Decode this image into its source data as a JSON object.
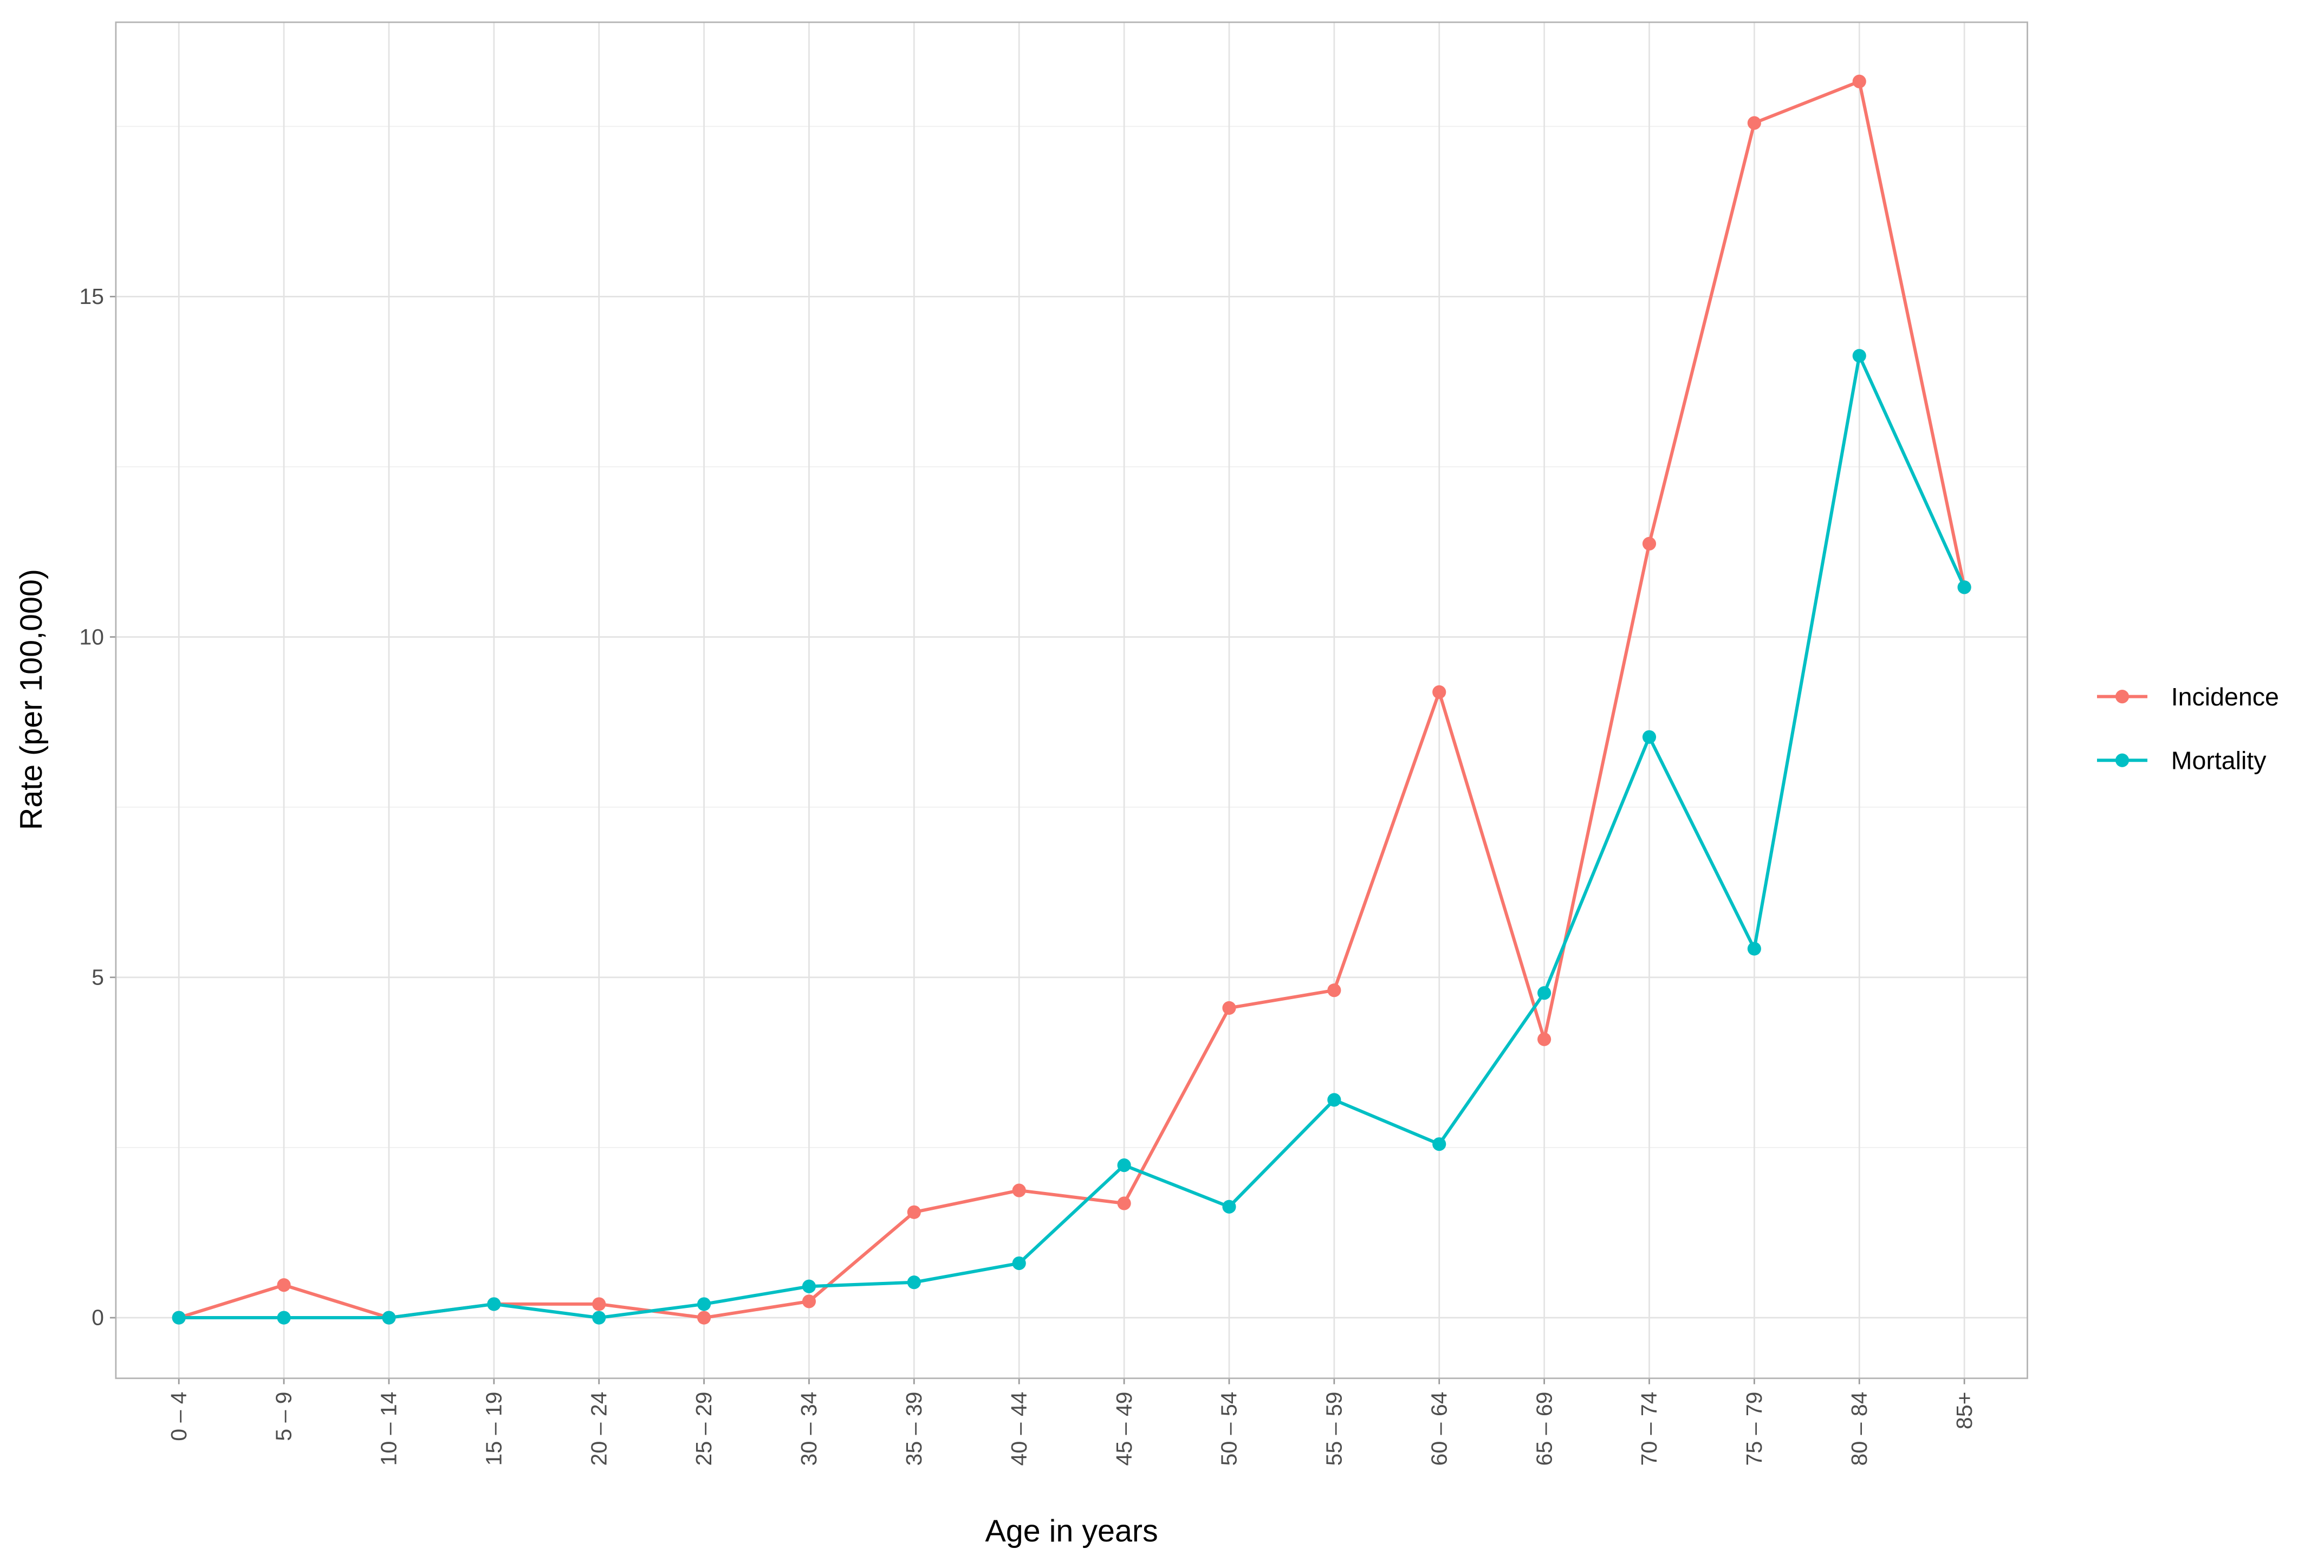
{
  "chart_data": {
    "type": "line",
    "x_label": "Age in years",
    "y_label": "Rate (per 100,000)",
    "categories": [
      "0 – 4",
      "5 – 9",
      "10 – 14",
      "15 – 19",
      "20 – 24",
      "25 – 29",
      "30 – 34",
      "35 – 39",
      "40 – 44",
      "45 – 49",
      "50 – 54",
      "55 – 59",
      "60 – 64",
      "65 – 69",
      "70 – 74",
      "75 – 79",
      "80 – 84",
      "85+"
    ],
    "series": [
      {
        "name": "Incidence",
        "color": "#f8766d",
        "values": [
          0,
          0.48,
          0,
          0.2,
          0.2,
          0,
          0.24,
          1.55,
          1.87,
          1.68,
          4.55,
          4.81,
          9.19,
          4.09,
          11.37,
          17.55,
          18.16,
          10.73
        ]
      },
      {
        "name": "Mortality",
        "color": "#00bfc4",
        "values": [
          0,
          0,
          0,
          0.2,
          0,
          0.2,
          0.46,
          0.52,
          0.8,
          2.24,
          1.63,
          3.2,
          2.55,
          4.77,
          8.53,
          5.42,
          14.13,
          10.73
        ]
      }
    ],
    "ylim": [
      -0.89,
      19.03
    ],
    "yticks": [
      0,
      5,
      10,
      15
    ],
    "minor_yticks": [
      2.5,
      7.5,
      12.5,
      17.5
    ],
    "grid": true,
    "legend": "right"
  }
}
